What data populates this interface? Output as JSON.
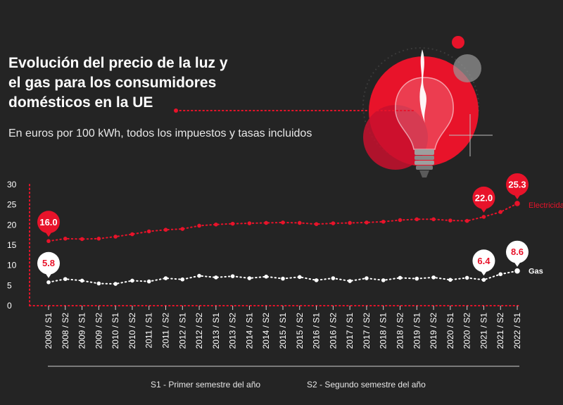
{
  "title_lines": [
    "Evolución del precio de la luz y",
    "el gas para los consumidores",
    "domésticos en la UE"
  ],
  "subtitle": "En euros por 100 kWh, todos los impuestos y tasas incluidos",
  "colors": {
    "background": "#242424",
    "electricity": "#e8132a",
    "gas": "#ffffff",
    "axis": "#e8132a"
  },
  "footnotes": {
    "s1": "S1 - Primer semestre del año",
    "s2": "S2 - Segundo semestre del año"
  },
  "chart_data": {
    "type": "line",
    "ylim": [
      0,
      30
    ],
    "yticks": [
      0,
      5,
      10,
      15,
      20,
      25,
      30
    ],
    "categories": [
      "2008 / S1",
      "2008 / S2",
      "2009 / S1",
      "2009 / S2",
      "2010 / S1",
      "2010 / S2",
      "2011 / S1",
      "2011 / S2",
      "2012 / S1",
      "2012 / S2",
      "2013 / S1",
      "2013 / S2",
      "2014 / S1",
      "2014 / S2",
      "2015 / S1",
      "2015 / S2",
      "2016 / S1",
      "2016 / S2",
      "2017 / S1",
      "2017 / S2",
      "2018 / S1",
      "2018 / S2",
      "2019 / S1",
      "2019 / S2",
      "2020 / S1",
      "2020 / S2",
      "2021 / S1",
      "2021 / S2",
      "2022 / S1"
    ],
    "series": [
      {
        "name": "Electricidad",
        "color": "#e8132a",
        "values": [
          16.0,
          16.6,
          16.5,
          16.6,
          17.1,
          17.7,
          18.4,
          18.8,
          19.0,
          19.8,
          20.1,
          20.3,
          20.4,
          20.5,
          20.6,
          20.5,
          20.2,
          20.4,
          20.5,
          20.6,
          20.8,
          21.2,
          21.4,
          21.4,
          21.1,
          21.0,
          22.0,
          23.2,
          25.3
        ],
        "labels": [
          {
            "index": 0,
            "text": "16.0"
          },
          {
            "index": 26,
            "text": "22.0"
          },
          {
            "index": 28,
            "text": "25.3"
          }
        ]
      },
      {
        "name": "Gas",
        "color": "#ffffff",
        "values": [
          5.8,
          6.6,
          6.2,
          5.5,
          5.4,
          6.2,
          6.0,
          6.8,
          6.5,
          7.4,
          7.0,
          7.3,
          6.8,
          7.2,
          6.7,
          7.1,
          6.3,
          6.8,
          6.1,
          6.8,
          6.3,
          6.9,
          6.7,
          7.0,
          6.4,
          6.9,
          6.4,
          7.8,
          8.6
        ],
        "labels": [
          {
            "index": 0,
            "text": "5.8"
          },
          {
            "index": 26,
            "text": "6.4"
          },
          {
            "index": 28,
            "text": "8.6"
          }
        ]
      }
    ]
  }
}
